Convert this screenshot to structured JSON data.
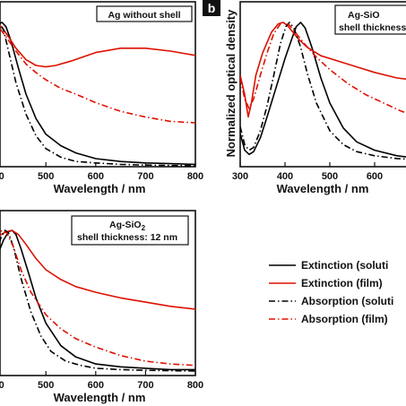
{
  "chart_data": [
    {
      "type": "line",
      "panel": "a",
      "annotation": [
        "Ag without shell"
      ],
      "xlabel": "Wavelength / nm",
      "ylabel": "",
      "xlim": [
        300,
        800
      ],
      "xticks": [
        400,
        500,
        600,
        700,
        800
      ],
      "series": [
        {
          "label_ref": "Extinction (solution)",
          "x": [
            300,
            330,
            360,
            380,
            395,
            405,
            412,
            420,
            430,
            445,
            460,
            480,
            500,
            530,
            560,
            600,
            650,
            700,
            750,
            800
          ],
          "y": [
            0.15,
            0.3,
            0.55,
            0.78,
            0.92,
            0.99,
            1.0,
            0.97,
            0.87,
            0.68,
            0.5,
            0.33,
            0.22,
            0.14,
            0.09,
            0.05,
            0.03,
            0.02,
            0.015,
            0.01
          ]
        },
        {
          "label_ref": "Extinction (film)",
          "x": [
            300,
            330,
            360,
            380,
            395,
            405,
            415,
            425,
            440,
            460,
            480,
            500,
            520,
            550,
            600,
            650,
            700,
            750,
            800
          ],
          "y": [
            0.75,
            0.88,
            0.96,
            0.99,
            1.0,
            0.99,
            0.95,
            0.9,
            0.82,
            0.74,
            0.7,
            0.69,
            0.7,
            0.73,
            0.79,
            0.82,
            0.82,
            0.8,
            0.77
          ]
        },
        {
          "label_ref": "Absorption (solution)",
          "x": [
            300,
            330,
            360,
            380,
            395,
            402,
            408,
            415,
            425,
            440,
            460,
            480,
            500,
            530,
            560,
            600,
            650,
            700,
            800
          ],
          "y": [
            0.1,
            0.25,
            0.5,
            0.75,
            0.9,
            0.97,
            0.99,
            0.95,
            0.8,
            0.58,
            0.36,
            0.21,
            0.12,
            0.06,
            0.03,
            0.02,
            0.01,
            0.005,
            0.0
          ]
        },
        {
          "label_ref": "Absorption (film)",
          "x": [
            300,
            320,
            340,
            360,
            380,
            395,
            405,
            420,
            440,
            460,
            480,
            500,
            530,
            560,
            600,
            650,
            700,
            750,
            800
          ],
          "y": [
            0.58,
            0.75,
            0.88,
            0.96,
            0.99,
            1.0,
            0.97,
            0.9,
            0.8,
            0.71,
            0.65,
            0.6,
            0.54,
            0.5,
            0.44,
            0.38,
            0.34,
            0.31,
            0.3
          ]
        }
      ]
    },
    {
      "type": "line",
      "panel": "b",
      "annotation": [
        "Ag-SiO",
        "shell thickness"
      ],
      "xlabel": "Wavelength / nm",
      "ylabel": "Normalized optical density",
      "xlim": [
        300,
        700
      ],
      "xticks": [
        300,
        400,
        500,
        600
      ],
      "series": [
        {
          "label_ref": "Extinction (solution)",
          "x": [
            300,
            310,
            320,
            330,
            345,
            360,
            380,
            400,
            415,
            425,
            435,
            445,
            460,
            480,
            500,
            530,
            560,
            600,
            650,
            700
          ],
          "y": [
            0.2,
            0.08,
            0.05,
            0.07,
            0.17,
            0.32,
            0.53,
            0.74,
            0.88,
            0.97,
            1.0,
            0.96,
            0.82,
            0.6,
            0.42,
            0.24,
            0.14,
            0.08,
            0.04,
            0.02
          ]
        },
        {
          "label_ref": "Extinction (film)",
          "x": [
            300,
            310,
            318,
            325,
            335,
            350,
            370,
            385,
            395,
            405,
            415,
            430,
            450,
            480,
            520,
            560,
            600,
            650,
            700
          ],
          "y": [
            0.62,
            0.48,
            0.32,
            0.42,
            0.62,
            0.78,
            0.93,
            0.99,
            1.0,
            0.98,
            0.94,
            0.88,
            0.82,
            0.76,
            0.72,
            0.68,
            0.64,
            0.6,
            0.58
          ]
        },
        {
          "label_ref": "Absorption (solution)",
          "x": [
            300,
            310,
            320,
            330,
            345,
            360,
            375,
            390,
            402,
            410,
            420,
            435,
            450,
            470,
            500,
            530,
            560,
            600,
            650,
            700
          ],
          "y": [
            0.25,
            0.12,
            0.08,
            0.1,
            0.22,
            0.4,
            0.62,
            0.85,
            0.97,
            1.0,
            0.96,
            0.82,
            0.63,
            0.42,
            0.22,
            0.12,
            0.07,
            0.04,
            0.02,
            0.01
          ]
        },
        {
          "label_ref": "Absorption (film)",
          "x": [
            300,
            310,
            320,
            330,
            345,
            360,
            375,
            390,
            400,
            410,
            425,
            445,
            470,
            500,
            540,
            580,
            620,
            660,
            700
          ],
          "y": [
            0.6,
            0.45,
            0.38,
            0.45,
            0.62,
            0.78,
            0.92,
            0.99,
            1.0,
            0.98,
            0.92,
            0.84,
            0.75,
            0.66,
            0.56,
            0.48,
            0.42,
            0.36,
            0.32
          ]
        }
      ]
    },
    {
      "type": "line",
      "panel": "c",
      "annotation": [
        "Ag-SiO",
        "2",
        "shell thickness: 12 nm"
      ],
      "xlabel": "Wavelength / nm",
      "ylabel": "",
      "xlim": [
        300,
        800
      ],
      "xticks": [
        400,
        500,
        600,
        700,
        800
      ],
      "series": [
        {
          "label_ref": "Extinction (solution)",
          "x": [
            300,
            330,
            360,
            380,
            400,
            415,
            425,
            432,
            440,
            450,
            465,
            480,
            500,
            530,
            560,
            600,
            650,
            700,
            750,
            800
          ],
          "y": [
            0.1,
            0.22,
            0.42,
            0.6,
            0.8,
            0.93,
            0.99,
            1.0,
            0.97,
            0.87,
            0.7,
            0.52,
            0.34,
            0.18,
            0.1,
            0.05,
            0.03,
            0.02,
            0.01,
            0.01
          ]
        },
        {
          "label_ref": "Extinction (film)",
          "x": [
            300,
            330,
            360,
            385,
            405,
            420,
            432,
            445,
            460,
            480,
            500,
            530,
            560,
            600,
            650,
            700,
            750,
            800
          ],
          "y": [
            0.48,
            0.6,
            0.75,
            0.88,
            0.96,
            0.99,
            1.0,
            0.97,
            0.9,
            0.8,
            0.72,
            0.65,
            0.6,
            0.56,
            0.52,
            0.49,
            0.46,
            0.44
          ]
        },
        {
          "label_ref": "Absorption (solution)",
          "x": [
            300,
            330,
            360,
            380,
            398,
            410,
            418,
            425,
            435,
            450,
            470,
            490,
            510,
            540,
            570,
            600,
            650,
            700,
            800
          ],
          "y": [
            0.08,
            0.2,
            0.4,
            0.6,
            0.82,
            0.95,
            1.0,
            0.98,
            0.88,
            0.66,
            0.42,
            0.25,
            0.14,
            0.07,
            0.04,
            0.02,
            0.01,
            0.005,
            0.0
          ]
        },
        {
          "label_ref": "Absorption (film)",
          "x": [
            300,
            330,
            360,
            385,
            400,
            412,
            422,
            435,
            450,
            470,
            500,
            530,
            560,
            600,
            650,
            700,
            750,
            800
          ],
          "y": [
            0.4,
            0.55,
            0.72,
            0.88,
            0.96,
            1.0,
            0.98,
            0.88,
            0.72,
            0.56,
            0.4,
            0.3,
            0.23,
            0.17,
            0.11,
            0.07,
            0.05,
            0.04
          ]
        }
      ]
    }
  ],
  "legend": [
    {
      "label": "Extinction (soluti",
      "color": "#000000",
      "dash": "solid"
    },
    {
      "label": "Extinction (film)",
      "color": "#dd1100",
      "dash": "solid"
    },
    {
      "label": "Absorption (soluti",
      "color": "#000000",
      "dash": "dashdot"
    },
    {
      "label": "Absorption (film)",
      "color": "#dd1100",
      "dash": "dashdot"
    }
  ],
  "colors": {
    "black_series": "#000000",
    "red_series": "#dd1100"
  },
  "panel_badge": "b"
}
